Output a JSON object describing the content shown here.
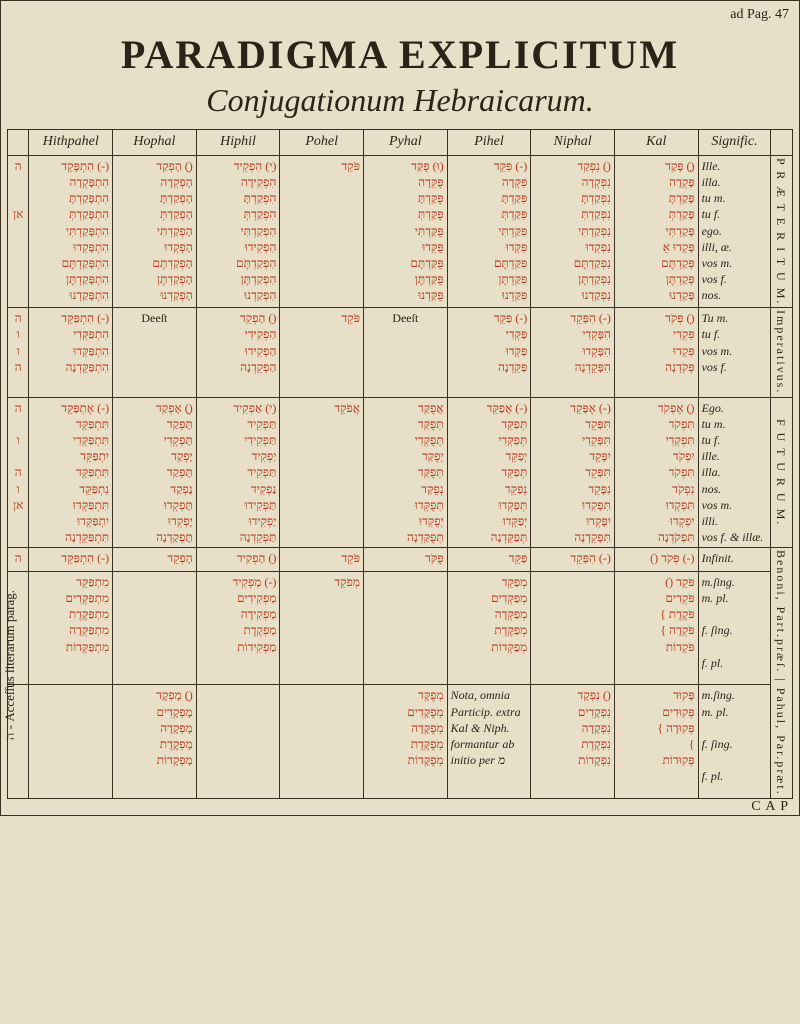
{
  "pageref": "ad Pag. 47",
  "title1": "PARADIGMA EXPLICITUM",
  "title2": "Conjugationum  Hebraicarum.",
  "columns": [
    "Hithpahel",
    "Hophal",
    "Hiphil",
    "Pohel",
    "Pyhal",
    "Pihel",
    "Niphal",
    "Kal",
    "Signific."
  ],
  "tenses": [
    "P R Æ T E R I T U M.",
    "Imperativus.",
    "F U T U R U M.",
    "Infinit.",
    "Benoni, Part.præſ. | Pahul, Par.præt."
  ],
  "left_side_note": "ה - Acceſſus literarum parag.",
  "left_heb_labels": {
    "r1": "ה\n\n\nאן",
    "r2": "ה\nו\nו\nה",
    "r3": "ה\n\nו\n\nה\nו\nאן",
    "r4": "ה",
    "r5": "",
    "r6": ""
  },
  "cells": {
    "r1": {
      "hithpahel": "(-) הִתְפָּקֵד\nהִתְפָּקְדָה\nהִתְפָּקַדְתָּ\nהִתְפָּקַדְתְּ\nהִתְפָּקַדְתִּי\nהִתְפָּקְדוּ\nהִתְפָּקַדְתֶּם\nהִתְפָּקַדְתֶּן\nהִתְפָּקַדְנוּ",
      "hophal": "(ֻ) הָפְקַד\nהָפְקְדָה\nהָפְקַדְתָּ\nהָפְקַדְתְּ\nהָפְקַדְתִּי\nהָפְקְדוּ\nהָפְקַדְתֶּם\nהָפְקַדְתֶּן\nהָפְקַדְנוּ",
      "hiphil": "(ִי) הִפְקִיד\nהִפְקִידָה\nהִפְקַדְתָּ\nהִפְקַדְתְּ\nהִפְקַדְתִּי\nהִפְקִידוּ\nהִפְקַדְתֶּם\nהִפְקַדְתֶּן\nהִפְקַדְנוּ",
      "pohel": "פֹּקֵד",
      "pyhal": "(וּ) פֻּקַּד\nפֻּקְּדָה\nפֻּקַּדְתָּ\nפֻּקַּדְתְּ\nפֻּקַּדְתִּי\nפֻּקְּדוּ\nפֻּקַּדְתֶּם\nפֻּקַּדְתֶּן\nפֻּקַּדְנוּ",
      "pihel": "(-) פִּקֵּד\nפִּקְּדָה\nפִּקַּדְתָּ\nפִּקַּדְתְּ\nפִּקַּדְתִּי\nפִּקְּדוּ\nפִּקַּדְתֶּם\nפִּקַּדְתֶּן\nפִּקַּדְנוּ",
      "niphal": "(ִ) נִפְקַד\nנִפְקְדָה\nנִפְקַדְתָּ\nנִפְקַדְתְּ\nנִפְקַדְתִּי\nנִפְקְדוּ\nנִפְקַדְתֶּם\nנִפְקַדְתֶּן\nנִפְקַדְנוּ",
      "kal": "(ָ) פָּקַד\nפָּקְדָה\nפָּקַדְתָּ\nפָּקַדְתְּ\nפָּקַדְתִּי\nפָּקְדוּ אֵ\nפְּקַדְתֶּם\nפְּקַדְתֶּן\nפָּקַדְנוּ",
      "signif": "Ille.\nilla.\ntu m.\ntu f.\nego.\nilli, æ.\nvos m.\nvos f.\nnos."
    },
    "r2": {
      "hithpahel": "(-) הִתְפַּקֵּד\nהִתְפַּקְּדִי\nהִתְפַּקְּדוּ\nהִתְפַּקֵּדְנָה",
      "hophal": "Deeſt",
      "hiphil": "(ִ) הַפְקֵד\nהַפְקִידִי\nהַפְקִידוּ\nהַפְקֵדְנָה",
      "pohel": "פֹּקֵד",
      "pyhal": "Deeſt",
      "pihel": "(-) פַּקֵּד\nפַּקְּדִי\nפַּקְּדוּ\nפַּקֵּדְנָה",
      "niphal": "(-) הִפָּקֵד\nהִפָּקְדִי\nהִפָּקְדוּ\nהִפָּקֵדְנָה",
      "kal": "(ְ) פְּקֹד\nפִּקְדִי\nפִּקְדוּ\nפְּקֹדְנָה",
      "signif": "Tu m.\ntu f.\nvos m.\nvos f."
    },
    "r3": {
      "hithpahel": "(-) אֶתְפַּקֵּד\nתִּתְפַּקֵּד\nתִּתְפַּקְּדִי\nיִתְפַּקֵּד\nתִּתְפַּקֵּד\nנִתְפַּקֵּד\nתִּתְפַּקְּדוּ\nיִתְפַּקְּדוּ\nתִּתְפַּקֵּדְנָה",
      "hophal": "(ֻ) אָפְקַד\nתָּפְקַד\nתָּפְקְדִי\nיָפְקַד\nתָּפְקַד\nנָפְקַד\nתָּפְקְדוּ\nיָפְקְדוּ\nתָּפְקַדְנָה",
      "hiphil": "(ִי) אַפְקִיד\nתַּפְקִיד\nתַּפְקִידִי\nיַפְקִיד\nתַּפְקִיד\nנַפְקִיד\nתַּפְקִידוּ\nיַפְקִידוּ\nתַּפְקֵדְנָה",
      "pohel": "אֲפֹקֵד",
      "pyhal": "אֲפֻקַּד\nתְּפֻקַּד\nתְּפֻקְּדִי\nיְפֻקַּד\nתְּפֻקַּד\nנְפֻקַּד\nתְּפֻקְּדוּ\nיְפֻקְּדוּ\nתְּפֻקַּדְנָה",
      "pihel": "(-) אֲפַקֵּד\nתְּפַקֵּד\nתְּפַקְּדִי\nיְפַקֵּד\nתְּפַקֵּד\nנְפַקֵּד\nתְּפַקְּדוּ\nיְפַקְּדוּ\nתְּפַקֵּדְנָה",
      "niphal": "(-) אֶפָּקֵד\nתִּפָּקֵד\nתִּפָּקְדִי\nיִפָּקֵד\nתִּפָּקֵד\nנִפָּקֵד\nתִּפָּקְדוּ\nיִפָּקְדוּ\nתִּפָּקֵדְנָה",
      "kal": "(ְ) אֶפְקֹד\nתִּפְקֹד\nתִּפְקְדִי\nיִפְקֹד\nתִּפְקֹד\nנִפְקֹד\nתִּפְקְדוּ\nיִפְקְדוּ\nתִּפְקֹדְנָה",
      "signif": "Ego.\ntu m.\ntu f.\nille.\nilla.\nnos.\nvos m.\nilli.\nvos f. & illæ."
    },
    "r4": {
      "hithpahel": "(-) הִתְפַּקֵּד",
      "hophal": "הָפְקֵד",
      "hiphil": "(ִ) הַפְקִיד",
      "pohel": "פֹּקֵד",
      "pyhal": "פֻּקֹּד",
      "pihel": "פַּקֵּד",
      "niphal": "(-) הִפָּקֵד",
      "kal": "(-) פְּקֹד (ֹ)",
      "signif": "Infinit."
    },
    "r5": {
      "hithpahel": "מִתְפַּקֵּד\nמִתְפַּקְּדִים\nמִתְפַּקֶּדֶת\nמִתְפַּקְּדָה\nמִתְפַּקְּדוֹת",
      "hophal": "",
      "hiphil": "(-) מַפְקִיד\nמַפְקִידִים\nמַפְקִידָה\nמַפְקֶדֶת\nמַפְקִידוֹת",
      "pohel": "מְפֹקֵד",
      "pyhal": "",
      "pihel": "מְפַקֵּד\nמְפַקְּדִים\nמְפַקְּדָה\nמְפַקֶּדֶת\nמְפַקְּדוֹת",
      "niphal": "",
      "kal": "פֹּקֵד (ֹ)\nפֹּקְדִים\nפֹּקֶדֶת }\nפֹּקְדָה }\nפֹּקְדוֹת",
      "signif": "m.ſing.\nm. pl.\n\nf. ſing.\n\nf. pl."
    },
    "r6": {
      "hithpahel": "",
      "hophal": "(ֻ) מָפְקָד\nמָפְקָדִים\nמָפְקָדָה\nמָפְקֶדֶת\nמָפְקָדוֹת",
      "hiphil": "",
      "pohel": "",
      "pyhal": "מְפֻקָּד\nמְפֻקָּדִים\nמְפֻקָּדָה\nמְפֻקֶּדֶת\nמְפֻקָּדוֹת",
      "pihel_note": "Nota, omnia Particip. extra Kal & Niph. formantur ab initio per מ",
      "niphal": "(ִ) נִפְקָד\nנִפְקָדִים\nנִפְקָדָה\nנִפְקֶדֶת\nנִפְקָדוֹת",
      "kal": "פָּקוּד\nפְּקוּדִים\nפְּקוּדָה }\n }\nפְּקוּדוֹת",
      "signif": "m.ſing.\nm. pl.\n\nf. ſing.\n\nf. pl."
    }
  },
  "cap": "C A P",
  "colors": {
    "bg": "#e8dfc8",
    "ink": "#2a2418",
    "red": "#b83818",
    "rule": "#3a3020"
  }
}
